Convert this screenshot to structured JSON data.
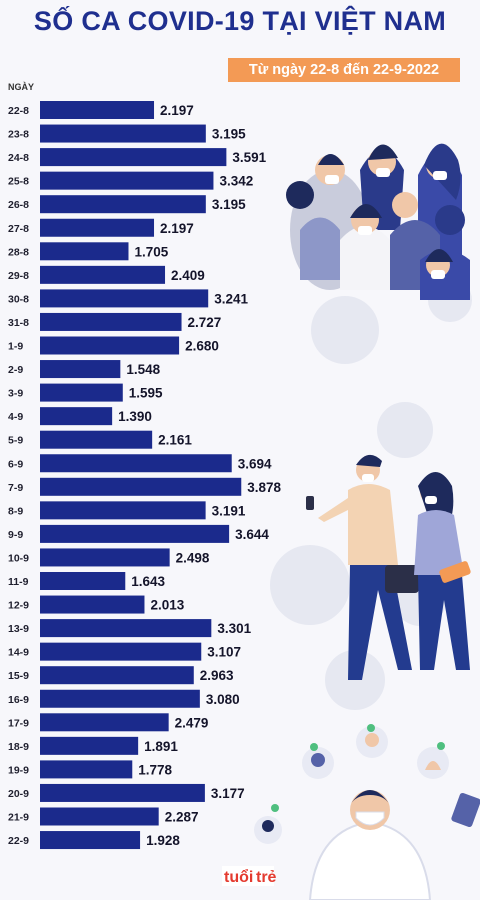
{
  "title": "SỐ CA COVID-19 TẠI VIỆT NAM",
  "date_range": "Từ ngày 22-8 đến 22-9-2022",
  "brand": "tuổi trẻ",
  "colors": {
    "bar": "#1b2a8c",
    "title": "#1f2f8f",
    "badge": "#f39a55"
  },
  "chart_data": {
    "type": "bar",
    "orientation": "horizontal",
    "title": "SỐ CA COVID-19 TẠI VIỆT NAM",
    "subtitle": "Từ ngày 22-8 đến 22-9-2022",
    "ylabel": "NGÀY",
    "xlabel": "",
    "categories": [
      "22-8",
      "23-8",
      "24-8",
      "25-8",
      "26-8",
      "27-8",
      "28-8",
      "29-8",
      "30-8",
      "31-8",
      "1-9",
      "2-9",
      "3-9",
      "4-9",
      "5-9",
      "6-9",
      "7-9",
      "8-9",
      "9-9",
      "10-9",
      "11-9",
      "12-9",
      "13-9",
      "14-9",
      "15-9",
      "16-9",
      "17-9",
      "18-9",
      "19-9",
      "20-9",
      "21-9",
      "22-9"
    ],
    "values": [
      2197,
      3195,
      3591,
      3342,
      3195,
      2197,
      1705,
      2409,
      3241,
      2727,
      2680,
      1548,
      1595,
      1390,
      2161,
      3694,
      3878,
      3191,
      3644,
      2498,
      1643,
      2013,
      3301,
      3107,
      2963,
      3080,
      2479,
      1891,
      1778,
      3177,
      2287,
      1928
    ],
    "value_labels": [
      "2.197",
      "3.195",
      "3.591",
      "3.342",
      "3.195",
      "2.197",
      "1.705",
      "2.409",
      "3.241",
      "2.727",
      "2.680",
      "1.548",
      "1.595",
      "1.390",
      "2.161",
      "3.694",
      "3.878",
      "3.191",
      "3.644",
      "2.498",
      "1.643",
      "2.013",
      "3.301",
      "3.107",
      "2.963",
      "3.080",
      "2.479",
      "1.891",
      "1.778",
      "3.177",
      "2.287",
      "1.928"
    ],
    "grid": false,
    "legend": "none"
  }
}
